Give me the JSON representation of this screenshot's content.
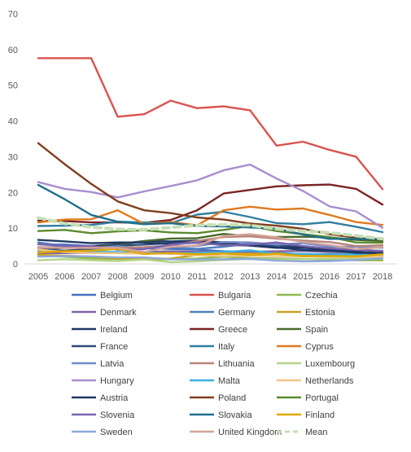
{
  "chart_data": {
    "type": "line",
    "title": "",
    "xlabel": "",
    "ylabel": "",
    "ylim": [
      0,
      70
    ],
    "y_ticks": [
      0,
      10,
      20,
      30,
      40,
      50,
      60,
      70
    ],
    "grid": false,
    "legend_position": "bottom",
    "categories": [
      "2005",
      "2006",
      "2007",
      "2008",
      "2009",
      "2010",
      "2011",
      "2012",
      "2013",
      "2014",
      "2015",
      "2016",
      "2017",
      "2018"
    ],
    "series": [
      {
        "name": "Belgium",
        "color": "#4472C4",
        "values": [
          5.5,
          5.4,
          5.0,
          4.5,
          4.3,
          4.2,
          4.0,
          3.5,
          3.4,
          3.1,
          2.7,
          2.7,
          2.6,
          2.4
        ]
      },
      {
        "name": "Bulgaria",
        "color": "#D9534F",
        "values": [
          57.6,
          57.6,
          57.6,
          41.2,
          41.9,
          45.7,
          43.6,
          44.1,
          43.0,
          33.1,
          34.2,
          31.9,
          30.0,
          20.9
        ]
      },
      {
        "name": "Czechia",
        "color": "#8DB94E",
        "values": [
          2.3,
          2.0,
          1.5,
          1.4,
          1.3,
          1.3,
          1.5,
          2.0,
          1.6,
          1.5,
          1.4,
          1.2,
          1.0,
          1.0
        ]
      },
      {
        "name": "Denmark",
        "color": "#8064A2",
        "values": [
          3.0,
          3.0,
          3.1,
          3.2,
          3.3,
          3.5,
          3.4,
          3.3,
          3.4,
          3.5,
          3.6,
          3.3,
          3.2,
          3.1
        ]
      },
      {
        "name": "Germany",
        "color": "#4F81BD",
        "values": [
          6.0,
          5.0,
          4.5,
          4.2,
          4.3,
          4.6,
          4.2,
          4.8,
          5.7,
          5.3,
          4.2,
          3.6,
          3.3,
          2.7
        ]
      },
      {
        "name": "Estonia",
        "color": "#C9A227",
        "values": [
          2.5,
          2.3,
          2.0,
          1.5,
          1.4,
          1.5,
          2.5,
          2.9,
          2.8,
          3.0,
          2.6,
          2.1,
          1.9,
          2.1
        ]
      },
      {
        "name": "Ireland",
        "color": "#1F3864",
        "values": [
          4.0,
          4.5,
          5.0,
          5.5,
          6.4,
          6.3,
          6.5,
          6.0,
          5.1,
          4.6,
          3.9,
          3.7,
          3.3,
          2.9
        ]
      },
      {
        "name": "Greece",
        "color": "#7B2424",
        "values": [
          12.1,
          12.0,
          11.6,
          11.6,
          11.5,
          12.3,
          15.0,
          19.7,
          20.7,
          21.7,
          22.0,
          22.2,
          21.0,
          16.6
        ]
      },
      {
        "name": "Spain",
        "color": "#4A6B2B",
        "values": [
          4.5,
          4.5,
          4.7,
          5.2,
          6.4,
          7.1,
          7.2,
          8.4,
          7.7,
          7.5,
          7.6,
          7.4,
          6.7,
          6.4
        ]
      },
      {
        "name": "France",
        "color": "#2E4A7D",
        "values": [
          4.0,
          3.7,
          4.2,
          5.1,
          5.4,
          5.8,
          6.1,
          5.2,
          5.2,
          5.1,
          4.8,
          4.2,
          3.8,
          3.6
        ]
      },
      {
        "name": "Italy",
        "color": "#2F7FA0",
        "values": [
          10.6,
          10.7,
          10.9,
          11.8,
          11.6,
          11.4,
          13.8,
          14.6,
          13.1,
          11.4,
          11.1,
          11.7,
          10.4,
          8.9
        ]
      },
      {
        "name": "Cyprus",
        "color": "#E07A1F",
        "values": [
          11.6,
          12.4,
          12.5,
          15.0,
          11.2,
          11.7,
          10.8,
          15.0,
          16.0,
          15.2,
          15.5,
          13.7,
          11.7,
          10.9
        ]
      },
      {
        "name": "Latvia",
        "color": "#6F8CC9",
        "values": [
          4.7,
          4.6,
          4.4,
          4.9,
          4.5,
          4.8,
          5.0,
          6.1,
          6.0,
          5.4,
          5.8,
          4.8,
          4.8,
          4.5
        ]
      },
      {
        "name": "Lithuania",
        "color": "#B8847A",
        "values": [
          4.5,
          4.5,
          4.5,
          4.5,
          4.7,
          5.1,
          6.4,
          7.5,
          7.7,
          7.1,
          6.5,
          6.1,
          5.0,
          5.2
        ]
      },
      {
        "name": "Luxembourg",
        "color": "#B5D48A",
        "values": [
          1.0,
          1.3,
          1.0,
          0.8,
          1.2,
          0.5,
          0.7,
          1.1,
          1.4,
          1.2,
          1.3,
          1.5,
          1.5,
          2.2
        ]
      },
      {
        "name": "Hungary",
        "color": "#A98DCE",
        "values": [
          22.9,
          21.0,
          20.1,
          18.6,
          20.3,
          21.8,
          23.4,
          26.2,
          27.8,
          23.9,
          20.4,
          16.1,
          14.7,
          10.1
        ]
      },
      {
        "name": "Malta",
        "color": "#3AB0E0",
        "values": [
          3.7,
          3.4,
          3.4,
          3.3,
          3.2,
          2.8,
          3.1,
          3.3,
          3.8,
          2.8,
          2.8,
          2.6,
          2.7,
          2.1
        ]
      },
      {
        "name": "Netherlands",
        "color": "#F2C488",
        "values": [
          4.0,
          3.3,
          3.0,
          3.0,
          2.8,
          2.9,
          2.4,
          2.2,
          2.3,
          2.2,
          2.1,
          2.0,
          2.0,
          2.1
        ]
      },
      {
        "name": "Austria",
        "color": "#203864",
        "values": [
          6.7,
          6.3,
          5.8,
          6.0,
          6.0,
          5.6,
          5.9,
          5.5,
          5.1,
          4.5,
          4.6,
          3.9,
          3.1,
          3.1
        ]
      },
      {
        "name": "Poland",
        "color": "#7F3F1F",
        "values": [
          33.8,
          27.9,
          22.4,
          17.5,
          15.0,
          14.2,
          13.0,
          12.4,
          11.3,
          10.7,
          9.8,
          8.3,
          7.3,
          6.8
        ]
      },
      {
        "name": "Portugal",
        "color": "#5C8A2E",
        "values": [
          9.2,
          9.5,
          8.6,
          9.1,
          9.4,
          8.8,
          8.6,
          9.5,
          10.6,
          9.2,
          8.3,
          7.5,
          6.0,
          5.9
        ]
      },
      {
        "name": "Slovenia",
        "color": "#7A64B0",
        "values": [
          5.5,
          5.0,
          5.0,
          4.0,
          4.1,
          5.4,
          6.0,
          5.2,
          5.4,
          6.0,
          5.0,
          4.3,
          4.0,
          3.6
        ]
      },
      {
        "name": "Slovakia",
        "color": "#1F6F8B",
        "values": [
          22.1,
          18.1,
          13.7,
          11.8,
          11.1,
          11.4,
          10.6,
          10.5,
          10.2,
          9.9,
          8.2,
          7.0,
          7.0,
          7.0
        ]
      },
      {
        "name": "Finland",
        "color": "#E0A800",
        "values": [
          3.2,
          3.5,
          3.7,
          4.2,
          2.8,
          3.0,
          2.7,
          2.9,
          2.5,
          2.8,
          2.2,
          2.2,
          2.1,
          2.7
        ]
      },
      {
        "name": "Sweden",
        "color": "#8EA9DB",
        "values": [
          2.0,
          2.2,
          2.1,
          1.8,
          1.8,
          1.3,
          1.2,
          1.3,
          1.4,
          0.9,
          0.7,
          0.8,
          1.1,
          1.6
        ]
      },
      {
        "name": "United Kingdom",
        "color": "#D4A39A",
        "values": [
          4.7,
          4.4,
          4.5,
          4.5,
          3.3,
          4.8,
          5.1,
          7.8,
          8.3,
          7.4,
          6.1,
          5.3,
          4.1,
          4.7
        ]
      },
      {
        "name": "Mean",
        "color": "#C6DFB4",
        "dashed": true,
        "values": [
          12.9,
          11.3,
          10.3,
          9.7,
          9.6,
          10.2,
          10.8,
          11.0,
          10.8,
          9.8,
          9.2,
          8.7,
          7.9,
          7.0
        ]
      }
    ]
  }
}
